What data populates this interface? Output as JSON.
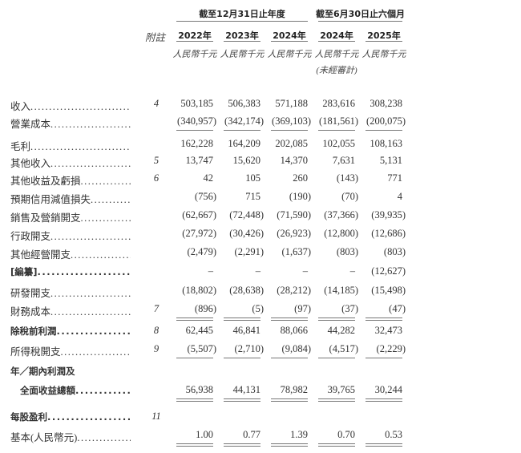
{
  "header": {
    "group1": "截至12月31日止年度",
    "group2": "截至6月30日止六個月",
    "note_label": "附註",
    "years": [
      "2022年",
      "2023年",
      "2024年",
      "2024年",
      "2025年"
    ],
    "units": [
      "人民幣千元",
      "人民幣千元",
      "人民幣千元",
      "人民幣千元",
      "人民幣千元"
    ],
    "unaudited": "(未經審計)"
  },
  "rows": [
    {
      "label": "收入",
      "note": "4",
      "values": [
        "503,185",
        "506,383",
        "571,188",
        "283,616",
        "308,238"
      ]
    },
    {
      "label": "營業成本",
      "note": "",
      "values": [
        "(340,957)",
        "(342,174)",
        "(369,103)",
        "(181,561)",
        "(200,075)"
      ]
    },
    {
      "label": "毛利",
      "note": "",
      "values": [
        "162,228",
        "164,209",
        "202,085",
        "102,055",
        "108,163"
      ]
    },
    {
      "label": "其他收入",
      "note": "5",
      "values": [
        "13,747",
        "15,620",
        "14,370",
        "7,631",
        "5,131"
      ]
    },
    {
      "label": "其他收益及虧損",
      "note": "6",
      "values": [
        "42",
        "105",
        "260",
        "(143)",
        "771"
      ]
    },
    {
      "label": "預期信用減值損失",
      "note": "",
      "values": [
        "(756)",
        "715",
        "(190)",
        "(70)",
        "4"
      ]
    },
    {
      "label": "銷售及營銷開支",
      "note": "",
      "values": [
        "(62,667)",
        "(72,448)",
        "(71,590)",
        "(37,366)",
        "(39,935)"
      ]
    },
    {
      "label": "行政開支",
      "note": "",
      "values": [
        "(27,972)",
        "(30,426)",
        "(26,923)",
        "(12,800)",
        "(12,686)"
      ]
    },
    {
      "label": "其他經營開支",
      "note": "",
      "values": [
        "(2,479)",
        "(2,291)",
        "(1,637)",
        "(803)",
        "(803)"
      ]
    },
    {
      "label": "[編纂]",
      "note": "",
      "values": [
        "–",
        "–",
        "–",
        "–",
        "(12,627)"
      ]
    },
    {
      "label": "研發開支",
      "note": "",
      "values": [
        "(18,802)",
        "(28,638)",
        "(28,212)",
        "(14,185)",
        "(15,498)"
      ]
    },
    {
      "label": "財務成本",
      "note": "7",
      "values": [
        "(896)",
        "(5)",
        "(97)",
        "(37)",
        "(47)"
      ]
    },
    {
      "label": "除稅前利潤",
      "note": "8",
      "values": [
        "62,445",
        "46,841",
        "88,066",
        "44,282",
        "32,473"
      ]
    },
    {
      "label": "所得稅開支",
      "note": "9",
      "values": [
        "(5,507)",
        "(2,710)",
        "(9,084)",
        "(4,517)",
        "(2,229)"
      ]
    },
    {
      "label": "年／期內利潤及",
      "note": "",
      "values": []
    },
    {
      "label": "全面收益總額",
      "note": "",
      "values": [
        "56,938",
        "44,131",
        "78,982",
        "39,765",
        "30,244"
      ]
    },
    {
      "label": "每股盈利",
      "note": "11",
      "values": []
    },
    {
      "label": "基本(人民幣元)",
      "note": "",
      "values": [
        "1.00",
        "0.77",
        "1.39",
        "0.70",
        "0.53"
      ]
    }
  ]
}
